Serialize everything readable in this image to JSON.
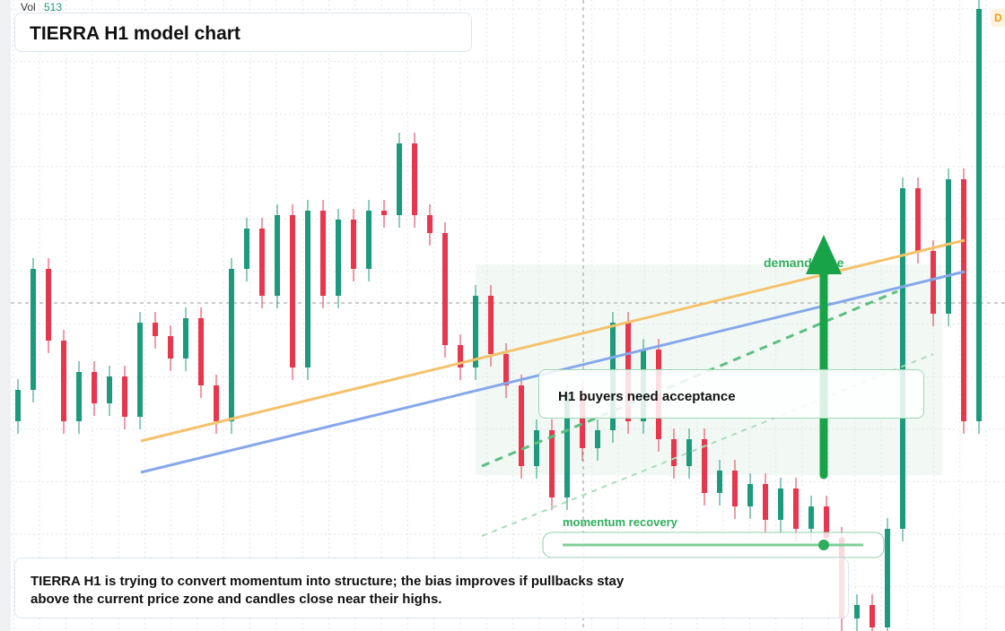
{
  "header": {
    "vol_label": "Vol",
    "vol_value": 513,
    "title": "TIERRA H1 model chart",
    "badge": "D"
  },
  "annotations": {
    "zone": "demand zone",
    "acceptance": "H1 buyers need acceptance",
    "momentum": "momentum recovery",
    "summary": "TIERRA H1 is trying to convert momentum into structure; the bias improves if pullbacks stay above the current price zone and candles close near their highs."
  },
  "chart_data": {
    "type": "candlestick",
    "ylim": [
      0,
      704
    ],
    "up_color": "#1d9a7c",
    "down_color": "#e8364d",
    "ohlc": [
      [
        234,
        281,
        220,
        269
      ],
      [
        269,
        416,
        255,
        404
      ],
      [
        404,
        416,
        310,
        324
      ],
      [
        324,
        336,
        220,
        234
      ],
      [
        234,
        301,
        220,
        289
      ],
      [
        289,
        301,
        240,
        254
      ],
      [
        254,
        296,
        240,
        284
      ],
      [
        284,
        296,
        225,
        239
      ],
      [
        239,
        356,
        225,
        344
      ],
      [
        344,
        356,
        315,
        329
      ],
      [
        329,
        341,
        290,
        304
      ],
      [
        304,
        361,
        290,
        349
      ],
      [
        349,
        361,
        260,
        274
      ],
      [
        274,
        286,
        220,
        234
      ],
      [
        234,
        416,
        220,
        404
      ],
      [
        404,
        461,
        390,
        449
      ],
      [
        449,
        461,
        360,
        374
      ],
      [
        374,
        476,
        360,
        464
      ],
      [
        464,
        476,
        280,
        294
      ],
      [
        294,
        481,
        280,
        469
      ],
      [
        469,
        481,
        360,
        374
      ],
      [
        374,
        471,
        360,
        459
      ],
      [
        459,
        471,
        390,
        404
      ],
      [
        404,
        481,
        390,
        469
      ],
      [
        469,
        481,
        450,
        464
      ],
      [
        464,
        556,
        450,
        544
      ],
      [
        544,
        556,
        450,
        464
      ],
      [
        464,
        476,
        430,
        444
      ],
      [
        444,
        456,
        305,
        319
      ],
      [
        319,
        331,
        280,
        294
      ],
      [
        294,
        386,
        280,
        374
      ],
      [
        374,
        386,
        295,
        309
      ],
      [
        309,
        321,
        260,
        274
      ],
      [
        274,
        286,
        170,
        184
      ],
      [
        184,
        236,
        170,
        224
      ],
      [
        224,
        236,
        135,
        149
      ],
      [
        149,
        276,
        135,
        264
      ],
      [
        264,
        276,
        190,
        204
      ],
      [
        204,
        236,
        190,
        224
      ],
      [
        224,
        356,
        210,
        344
      ],
      [
        344,
        356,
        220,
        234
      ],
      [
        234,
        326,
        220,
        314
      ],
      [
        314,
        326,
        200,
        214
      ],
      [
        214,
        226,
        170,
        184
      ],
      [
        184,
        226,
        170,
        214
      ],
      [
        214,
        226,
        140,
        154
      ],
      [
        154,
        191,
        140,
        179
      ],
      [
        179,
        191,
        125,
        139
      ],
      [
        139,
        176,
        125,
        164
      ],
      [
        164,
        176,
        110,
        124
      ],
      [
        124,
        171,
        110,
        159
      ],
      [
        159,
        171,
        100,
        114
      ],
      [
        114,
        151,
        100,
        139
      ],
      [
        139,
        151,
        90,
        104
      ],
      [
        104,
        116,
        0,
        14
      ],
      [
        14,
        41,
        0,
        29
      ],
      [
        29,
        41,
        0,
        4
      ],
      [
        4,
        126,
        0,
        114
      ],
      [
        114,
        506,
        100,
        494
      ],
      [
        494,
        506,
        410,
        424
      ],
      [
        424,
        436,
        340,
        354
      ],
      [
        354,
        516,
        340,
        504
      ],
      [
        504,
        516,
        220,
        234
      ],
      [
        234,
        704,
        220,
        694
      ]
    ]
  }
}
